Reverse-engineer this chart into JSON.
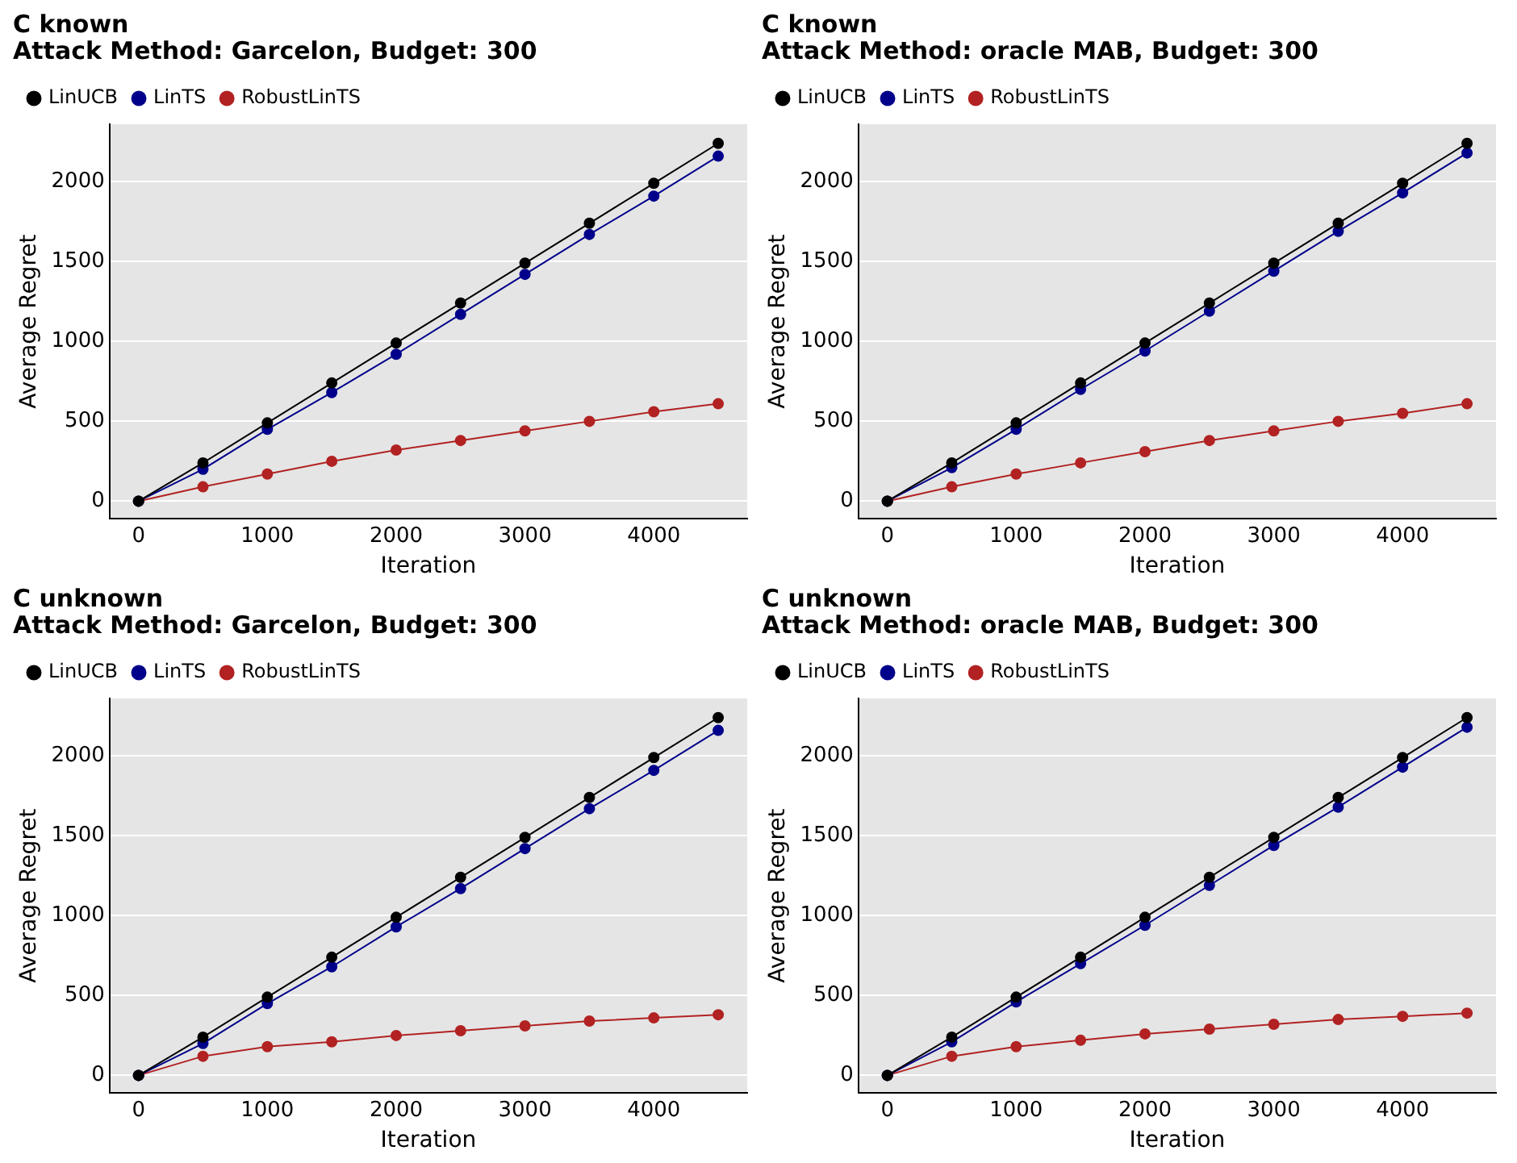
{
  "chart_data": [
    {
      "type": "line",
      "title": "C known\nAttack Method: Garcelon, Budget: 300",
      "xlabel": "Iteration",
      "ylabel": "Average Regret",
      "x": [
        0,
        500,
        1000,
        1500,
        2000,
        2500,
        3000,
        3500,
        4000,
        4500
      ],
      "series": [
        {
          "name": "LinUCB",
          "color": "#000000",
          "values": [
            0,
            240,
            490,
            740,
            990,
            1240,
            1490,
            1740,
            1990,
            2240
          ]
        },
        {
          "name": "LinTS",
          "color": "#00008b",
          "values": [
            0,
            200,
            450,
            680,
            920,
            1170,
            1420,
            1670,
            1910,
            2160
          ]
        },
        {
          "name": "RobustLinTS",
          "color": "#b22222",
          "values": [
            0,
            90,
            170,
            250,
            320,
            380,
            440,
            500,
            560,
            610
          ]
        }
      ],
      "xlim": [
        -225,
        4725
      ],
      "ylim": [
        -110,
        2360
      ],
      "xticks": [
        0,
        1000,
        2000,
        3000,
        4000
      ],
      "yticks": [
        0,
        500,
        1000,
        1500,
        2000
      ],
      "grid": "y",
      "legend": "top left",
      "marker": "circle"
    },
    {
      "type": "line",
      "title": "C known\nAttack Method: oracle MAB, Budget: 300",
      "xlabel": "Iteration",
      "ylabel": "Average Regret",
      "x": [
        0,
        500,
        1000,
        1500,
        2000,
        2500,
        3000,
        3500,
        4000,
        4500
      ],
      "series": [
        {
          "name": "LinUCB",
          "color": "#000000",
          "values": [
            0,
            240,
            490,
            740,
            990,
            1240,
            1490,
            1740,
            1990,
            2240
          ]
        },
        {
          "name": "LinTS",
          "color": "#00008b",
          "values": [
            0,
            210,
            450,
            700,
            940,
            1190,
            1440,
            1690,
            1930,
            2180
          ]
        },
        {
          "name": "RobustLinTS",
          "color": "#b22222",
          "values": [
            0,
            90,
            170,
            240,
            310,
            380,
            440,
            500,
            550,
            610
          ]
        }
      ],
      "xlim": [
        -225,
        4725
      ],
      "ylim": [
        -110,
        2360
      ],
      "xticks": [
        0,
        1000,
        2000,
        3000,
        4000
      ],
      "yticks": [
        0,
        500,
        1000,
        1500,
        2000
      ],
      "grid": "y",
      "legend": "top left",
      "marker": "circle"
    },
    {
      "type": "line",
      "title": "C unknown\nAttack Method: Garcelon, Budget: 300",
      "xlabel": "Iteration",
      "ylabel": "Average Regret",
      "x": [
        0,
        500,
        1000,
        1500,
        2000,
        2500,
        3000,
        3500,
        4000,
        4500
      ],
      "series": [
        {
          "name": "LinUCB",
          "color": "#000000",
          "values": [
            0,
            240,
            490,
            740,
            990,
            1240,
            1490,
            1740,
            1990,
            2240
          ]
        },
        {
          "name": "LinTS",
          "color": "#00008b",
          "values": [
            0,
            200,
            450,
            680,
            930,
            1170,
            1420,
            1670,
            1910,
            2160
          ]
        },
        {
          "name": "RobustLinTS",
          "color": "#b22222",
          "values": [
            0,
            120,
            180,
            210,
            250,
            280,
            310,
            340,
            360,
            380
          ]
        }
      ],
      "xlim": [
        -225,
        4725
      ],
      "ylim": [
        -110,
        2360
      ],
      "xticks": [
        0,
        1000,
        2000,
        3000,
        4000
      ],
      "yticks": [
        0,
        500,
        1000,
        1500,
        2000
      ],
      "grid": "y",
      "legend": "top left",
      "marker": "circle"
    },
    {
      "type": "line",
      "title": "C unknown\nAttack Method: oracle MAB, Budget: 300",
      "xlabel": "Iteration",
      "ylabel": "Average Regret",
      "x": [
        0,
        500,
        1000,
        1500,
        2000,
        2500,
        3000,
        3500,
        4000,
        4500
      ],
      "series": [
        {
          "name": "LinUCB",
          "color": "#000000",
          "values": [
            0,
            240,
            490,
            740,
            990,
            1240,
            1490,
            1740,
            1990,
            2240
          ]
        },
        {
          "name": "LinTS",
          "color": "#00008b",
          "values": [
            0,
            210,
            460,
            700,
            940,
            1190,
            1440,
            1680,
            1930,
            2180
          ]
        },
        {
          "name": "RobustLinTS",
          "color": "#b22222",
          "values": [
            0,
            120,
            180,
            220,
            260,
            290,
            320,
            350,
            370,
            390
          ]
        }
      ],
      "xlim": [
        -225,
        4725
      ],
      "ylim": [
        -110,
        2360
      ],
      "xticks": [
        0,
        1000,
        2000,
        3000,
        4000
      ],
      "yticks": [
        0,
        500,
        1000,
        1500,
        2000
      ],
      "grid": "y",
      "legend": "top left",
      "marker": "circle"
    }
  ]
}
